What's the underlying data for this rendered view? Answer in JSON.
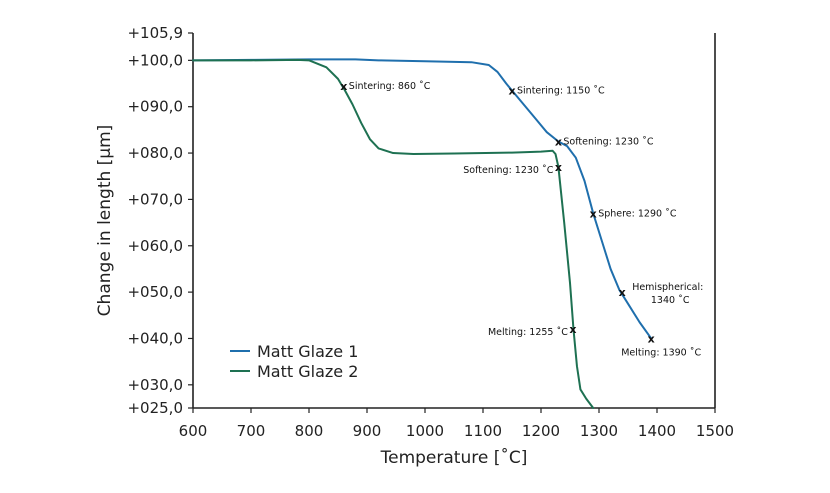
{
  "chart_data": {
    "type": "line",
    "title": "",
    "xlabel": "Temperature [˚C]",
    "ylabel": "Change in length [µm]",
    "xlim": [
      600,
      1500
    ],
    "ylim": [
      25.0,
      105.9
    ],
    "xticks": [
      600,
      700,
      800,
      900,
      1000,
      1100,
      1200,
      1300,
      1400,
      1500
    ],
    "xtick_labels": [
      "600",
      "700",
      "800",
      "900",
      "1000",
      "1100",
      "1200",
      "1300",
      "1400",
      "1500"
    ],
    "yticks": [
      105.9,
      100.0,
      90.0,
      80.0,
      70.0,
      60.0,
      50.0,
      40.0,
      30.0,
      25.0
    ],
    "ytick_labels": [
      "+105,9",
      "+100,0",
      "+090,0",
      "+080,0",
      "+070,0",
      "+060,0",
      "+050,0",
      "+040,0",
      "+030,0",
      "+025,0"
    ],
    "grid": false,
    "legend_position": "bottom-left",
    "series": [
      {
        "name": "Matt Glaze 1",
        "color": "#1f6fad",
        "points": [
          [
            600,
            100.0
          ],
          [
            700,
            100.1
          ],
          [
            800,
            100.2
          ],
          [
            880,
            100.2
          ],
          [
            920,
            100.0
          ],
          [
            1000,
            99.8
          ],
          [
            1080,
            99.6
          ],
          [
            1110,
            99.0
          ],
          [
            1125,
            97.5
          ],
          [
            1140,
            95.0
          ],
          [
            1150,
            93.5
          ],
          [
            1170,
            90.5
          ],
          [
            1190,
            87.5
          ],
          [
            1210,
            84.5
          ],
          [
            1230,
            82.5
          ],
          [
            1245,
            81.5
          ],
          [
            1260,
            79.0
          ],
          [
            1275,
            74.0
          ],
          [
            1290,
            67.0
          ],
          [
            1305,
            61.0
          ],
          [
            1320,
            55.0
          ],
          [
            1335,
            50.5
          ],
          [
            1350,
            47.5
          ],
          [
            1370,
            43.5
          ],
          [
            1390,
            40.0
          ]
        ]
      },
      {
        "name": "Matt Glaze 2",
        "color": "#1e7152",
        "points": [
          [
            600,
            100.0
          ],
          [
            700,
            100.0
          ],
          [
            780,
            100.1
          ],
          [
            800,
            100.0
          ],
          [
            830,
            98.5
          ],
          [
            850,
            96.0
          ],
          [
            862,
            93.5
          ],
          [
            875,
            90.5
          ],
          [
            890,
            86.5
          ],
          [
            905,
            83.0
          ],
          [
            920,
            81.0
          ],
          [
            945,
            80.0
          ],
          [
            980,
            79.8
          ],
          [
            1050,
            79.9
          ],
          [
            1150,
            80.1
          ],
          [
            1200,
            80.3
          ],
          [
            1220,
            80.5
          ],
          [
            1225,
            79.8
          ],
          [
            1230,
            77.0
          ],
          [
            1240,
            65.0
          ],
          [
            1250,
            52.0
          ],
          [
            1256,
            42.0
          ],
          [
            1262,
            34.0
          ],
          [
            1268,
            29.0
          ],
          [
            1278,
            27.0
          ],
          [
            1290,
            25.0
          ]
        ]
      }
    ],
    "annotations": [
      {
        "series": "Matt Glaze 2",
        "x": 860,
        "y": 94.5,
        "text": "Sintering: 860 ˚C",
        "side": "right"
      },
      {
        "series": "Matt Glaze 1",
        "x": 1150,
        "y": 93.5,
        "text": "Sintering: 1150 ˚C",
        "side": "right"
      },
      {
        "series": "Matt Glaze 1",
        "x": 1230,
        "y": 82.5,
        "text": "Softening: 1230 ˚C",
        "side": "right"
      },
      {
        "series": "Matt Glaze 2",
        "x": 1230,
        "y": 77.0,
        "text": "Softening: 1230 ˚C",
        "side": "left"
      },
      {
        "series": "Matt Glaze 1",
        "x": 1290,
        "y": 67.0,
        "text": "Sphere: 1290 ˚C",
        "side": "right"
      },
      {
        "series": "Matt Glaze 1",
        "x": 1340,
        "y": 50.0,
        "text": "Hemispherical:",
        "text2": "1340 ˚C",
        "side": "right"
      },
      {
        "series": "Matt Glaze 2",
        "x": 1255,
        "y": 42.0,
        "text": "Melting: 1255 ˚C",
        "side": "left"
      },
      {
        "series": "Matt Glaze 1",
        "x": 1390,
        "y": 40.0,
        "text": "Melting: 1390 ˚C",
        "side": "below"
      }
    ],
    "marker_symbol": "x"
  }
}
